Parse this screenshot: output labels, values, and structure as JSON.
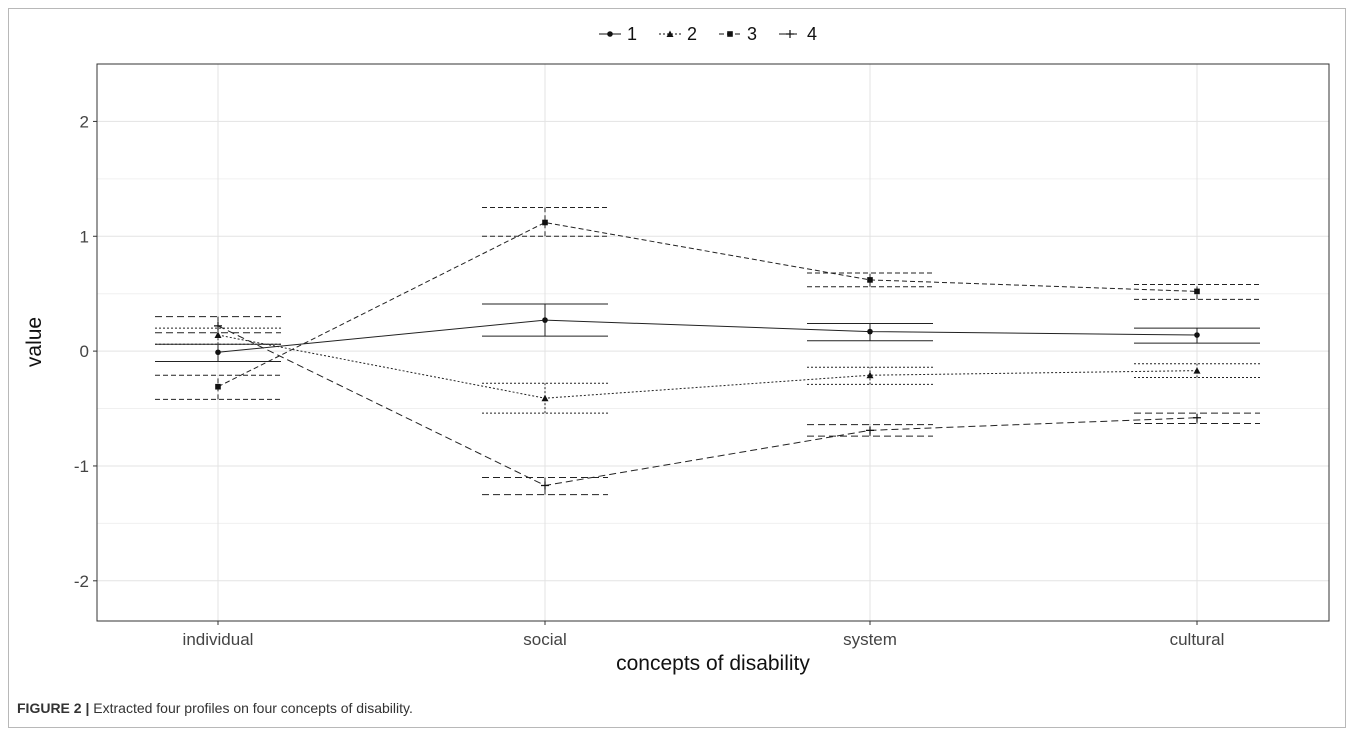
{
  "caption": {
    "label": "FIGURE 2 |",
    "text": "Extracted four profiles on four concepts of disability."
  },
  "chart_data": {
    "type": "line",
    "xlabel": "concepts of disability",
    "ylabel": "value",
    "categories": [
      "individual",
      "social",
      "system",
      "cultural"
    ],
    "ylim": [
      -2.35,
      2.5
    ],
    "y_ticks": [
      -2,
      -1,
      0,
      1,
      2
    ],
    "grid": true,
    "legend_position": "top",
    "series": [
      {
        "name": "1",
        "marker": "circle",
        "line_style": "solid",
        "values": [
          -0.01,
          0.27,
          0.17,
          0.14
        ],
        "ci_lower": [
          -0.09,
          0.13,
          0.09,
          0.07
        ],
        "ci_upper": [
          0.06,
          0.41,
          0.24,
          0.2
        ]
      },
      {
        "name": "2",
        "marker": "triangle",
        "line_style": "dotted",
        "values": [
          0.14,
          -0.41,
          -0.21,
          -0.17
        ],
        "ci_lower": [
          0.06,
          -0.54,
          -0.29,
          -0.23
        ],
        "ci_upper": [
          0.2,
          -0.28,
          -0.14,
          -0.11
        ]
      },
      {
        "name": "3",
        "marker": "square",
        "line_style": "dashed",
        "values": [
          -0.31,
          1.12,
          0.62,
          0.52
        ],
        "ci_lower": [
          -0.42,
          1.0,
          0.56,
          0.45
        ],
        "ci_upper": [
          -0.21,
          1.25,
          0.68,
          0.58
        ]
      },
      {
        "name": "4",
        "marker": "plus",
        "line_style": "longdash",
        "values": [
          0.22,
          -1.17,
          -0.69,
          -0.58
        ],
        "ci_lower": [
          0.16,
          -1.25,
          -0.74,
          -0.63
        ],
        "ci_upper": [
          0.3,
          -1.1,
          -0.64,
          -0.54
        ]
      }
    ]
  }
}
